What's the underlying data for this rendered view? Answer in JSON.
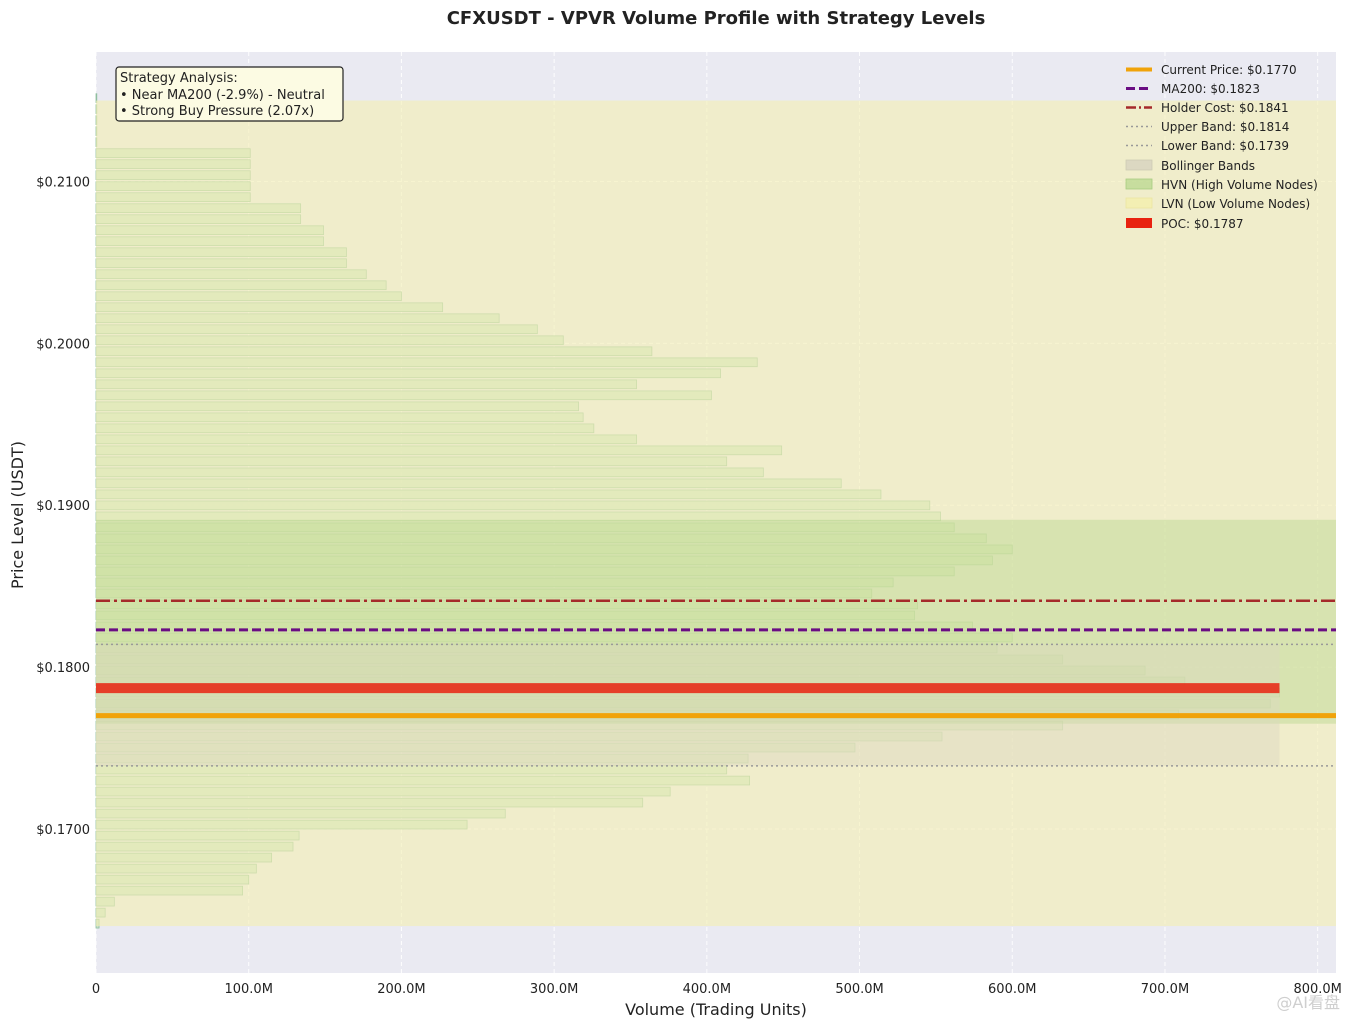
{
  "chart_data": {
    "type": "bar",
    "orientation": "horizontal",
    "title": "CFXUSDT - VPVR Volume Profile with Strategy Levels",
    "xlabel": "Volume (Trading Units)",
    "ylabel": "Price Level (USDT)",
    "xlim": [
      0,
      812
    ],
    "ylim": [
      0.1611,
      0.218
    ],
    "x_ticks": [
      {
        "value": 0,
        "label": "0"
      },
      {
        "value": 100,
        "label": "100.0M"
      },
      {
        "value": 200,
        "label": "200.0M"
      },
      {
        "value": 300,
        "label": "300.0M"
      },
      {
        "value": 400,
        "label": "400.0M"
      },
      {
        "value": 500,
        "label": "500.0M"
      },
      {
        "value": 600,
        "label": "600.0M"
      },
      {
        "value": 700,
        "label": "700.0M"
      },
      {
        "value": 800,
        "label": "800.0M"
      }
    ],
    "y_ticks": [
      {
        "value": 0.17,
        "label": "$0.1700"
      },
      {
        "value": 0.18,
        "label": "$0.1800"
      },
      {
        "value": 0.19,
        "label": "$0.1900"
      },
      {
        "value": 0.2,
        "label": "$0.2000"
      },
      {
        "value": 0.21,
        "label": "$0.2100"
      }
    ],
    "grid": true,
    "legend_position": "top-right",
    "volume_units": "M",
    "bin_height": 0.00068,
    "bins": [
      {
        "price": 0.21515,
        "volume": 0
      },
      {
        "price": 0.21447,
        "volume": 0
      },
      {
        "price": 0.21379,
        "volume": 0
      },
      {
        "price": 0.21311,
        "volume": 0
      },
      {
        "price": 0.21243,
        "volume": 0
      },
      {
        "price": 0.21175,
        "volume": 101
      },
      {
        "price": 0.21107,
        "volume": 101
      },
      {
        "price": 0.21039,
        "volume": 101
      },
      {
        "price": 0.20971,
        "volume": 101
      },
      {
        "price": 0.20903,
        "volume": 101
      },
      {
        "price": 0.20835,
        "volume": 134
      },
      {
        "price": 0.20767,
        "volume": 134
      },
      {
        "price": 0.20699,
        "volume": 149
      },
      {
        "price": 0.20631,
        "volume": 149
      },
      {
        "price": 0.20563,
        "volume": 164
      },
      {
        "price": 0.20495,
        "volume": 164
      },
      {
        "price": 0.20427,
        "volume": 177
      },
      {
        "price": 0.20359,
        "volume": 190
      },
      {
        "price": 0.20291,
        "volume": 200
      },
      {
        "price": 0.20223,
        "volume": 227
      },
      {
        "price": 0.20155,
        "volume": 264
      },
      {
        "price": 0.20087,
        "volume": 289
      },
      {
        "price": 0.20019,
        "volume": 306
      },
      {
        "price": 0.19951,
        "volume": 364
      },
      {
        "price": 0.19883,
        "volume": 433
      },
      {
        "price": 0.19815,
        "volume": 409
      },
      {
        "price": 0.19747,
        "volume": 354
      },
      {
        "price": 0.19679,
        "volume": 403
      },
      {
        "price": 0.19611,
        "volume": 316
      },
      {
        "price": 0.19543,
        "volume": 319
      },
      {
        "price": 0.19475,
        "volume": 326
      },
      {
        "price": 0.19407,
        "volume": 354
      },
      {
        "price": 0.19339,
        "volume": 449
      },
      {
        "price": 0.19271,
        "volume": 413
      },
      {
        "price": 0.19203,
        "volume": 437
      },
      {
        "price": 0.19135,
        "volume": 488
      },
      {
        "price": 0.19067,
        "volume": 514
      },
      {
        "price": 0.18999,
        "volume": 546
      },
      {
        "price": 0.18931,
        "volume": 553
      },
      {
        "price": 0.18863,
        "volume": 562
      },
      {
        "price": 0.18795,
        "volume": 583
      },
      {
        "price": 0.18727,
        "volume": 600
      },
      {
        "price": 0.18659,
        "volume": 587
      },
      {
        "price": 0.18591,
        "volume": 562
      },
      {
        "price": 0.18523,
        "volume": 522
      },
      {
        "price": 0.18455,
        "volume": 508
      },
      {
        "price": 0.18387,
        "volume": 538
      },
      {
        "price": 0.18319,
        "volume": 536
      },
      {
        "price": 0.18251,
        "volume": 574
      },
      {
        "price": 0.18183,
        "volume": 600
      },
      {
        "price": 0.18115,
        "volume": 590
      },
      {
        "price": 0.18047,
        "volume": 633
      },
      {
        "price": 0.17979,
        "volume": 687
      },
      {
        "price": 0.17911,
        "volume": 713
      },
      {
        "price": 0.17843,
        "volume": 775
      },
      {
        "price": 0.17775,
        "volume": 769
      },
      {
        "price": 0.17707,
        "volume": 709
      },
      {
        "price": 0.17639,
        "volume": 633
      },
      {
        "price": 0.17571,
        "volume": 554
      },
      {
        "price": 0.17503,
        "volume": 497
      },
      {
        "price": 0.17435,
        "volume": 427
      },
      {
        "price": 0.17367,
        "volume": 413
      },
      {
        "price": 0.17299,
        "volume": 428
      },
      {
        "price": 0.17231,
        "volume": 376
      },
      {
        "price": 0.17163,
        "volume": 358
      },
      {
        "price": 0.17095,
        "volume": 268
      },
      {
        "price": 0.17027,
        "volume": 243
      },
      {
        "price": 0.16959,
        "volume": 133
      },
      {
        "price": 0.16891,
        "volume": 129
      },
      {
        "price": 0.16823,
        "volume": 115
      },
      {
        "price": 0.16755,
        "volume": 105
      },
      {
        "price": 0.16687,
        "volume": 100
      },
      {
        "price": 0.16619,
        "volume": 96
      },
      {
        "price": 0.16551,
        "volume": 12
      },
      {
        "price": 0.16483,
        "volume": 6
      },
      {
        "price": 0.16415,
        "volume": 2
      }
    ],
    "levels": {
      "current_price": 0.177,
      "ma200": 0.1823,
      "holder_cost": 0.1841,
      "upper_band": 0.1814,
      "lower_band": 0.1739,
      "poc": 0.1787
    },
    "zones": {
      "lvn": [
        0.164,
        0.215
      ],
      "hvn": [
        0.1765,
        0.1891
      ],
      "bollinger": [
        0.1739,
        0.1814
      ],
      "bollinger_xmax": 775,
      "poc_xmax": 775
    },
    "colors": {
      "current_price": "#f0a30a",
      "ma200": "#6a0d83",
      "holder_cost": "#a52a2a",
      "bands": "#999999",
      "poc": "#e8220f",
      "bar_fill": "#c3dfc3",
      "bar_edge": "#8fbf9f",
      "hvn": "#b5d68a",
      "lvn": "#f3efb3",
      "bollinger": "#dcd8c2",
      "plot_bg": "#eaeaf2"
    },
    "legend": [
      {
        "key": "current",
        "label": "Current Price: $0.1770"
      },
      {
        "key": "ma200",
        "label": "MA200: $0.1823"
      },
      {
        "key": "holder",
        "label": "Holder Cost: $0.1841"
      },
      {
        "key": "upper",
        "label": "Upper Band: $0.1814"
      },
      {
        "key": "lower",
        "label": "Lower Band: $0.1739"
      },
      {
        "key": "bollinger",
        "label": "Bollinger Bands"
      },
      {
        "key": "hvn",
        "label": "HVN (High Volume Nodes)"
      },
      {
        "key": "lvn",
        "label": "LVN (Low Volume Nodes)"
      },
      {
        "key": "poc",
        "label": "POC: $0.1787"
      }
    ],
    "annotation": [
      "Strategy Analysis:",
      "• Near MA200 (-2.9%) - Neutral",
      "• Strong Buy Pressure (2.07x)"
    ]
  },
  "watermark": "@AI看盘"
}
